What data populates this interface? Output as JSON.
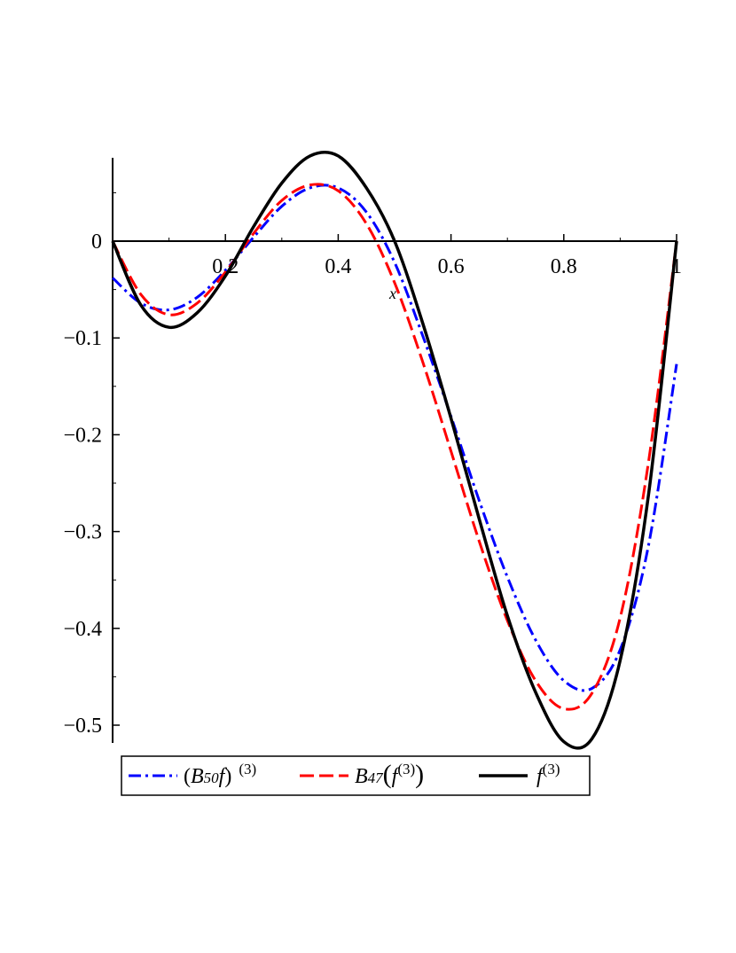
{
  "chart_data": {
    "type": "line",
    "xlabel": "x",
    "ylabel": "",
    "xlim": [
      0,
      1
    ],
    "ylim": [
      -0.52,
      0.09
    ],
    "x_ticks": [
      {
        "value": 0.2,
        "label": "0.2"
      },
      {
        "value": 0.4,
        "label": "0.4"
      },
      {
        "value": 0.6,
        "label": "0.6"
      },
      {
        "value": 0.8,
        "label": "0.8"
      },
      {
        "value": 1.0,
        "label": "1"
      }
    ],
    "y_ticks": [
      {
        "value": 0,
        "label": "0"
      },
      {
        "value": -0.1,
        "label": "−0.1"
      },
      {
        "value": -0.2,
        "label": "−0.2"
      },
      {
        "value": -0.3,
        "label": "−0.3"
      },
      {
        "value": -0.4,
        "label": "−0.4"
      },
      {
        "value": -0.5,
        "label": "−0.5"
      }
    ],
    "grid": false,
    "legend_position": "bottom",
    "x": [
      0,
      0.05,
      0.1,
      0.15,
      0.2,
      0.25,
      0.3,
      0.35,
      0.4,
      0.45,
      0.5,
      0.55,
      0.6,
      0.65,
      0.7,
      0.75,
      0.8,
      0.85,
      0.9,
      0.95,
      1.0
    ],
    "series": [
      {
        "name": "(B50f)^(3)",
        "color": "#0000ff",
        "dash": "dashdot",
        "values": [
          -0.038,
          -0.064,
          -0.071,
          -0.058,
          -0.03,
          0.004,
          0.036,
          0.055,
          0.055,
          0.03,
          -0.022,
          -0.098,
          -0.181,
          -0.268,
          -0.347,
          -0.412,
          -0.454,
          -0.462,
          -0.422,
          -0.315,
          -0.127
        ]
      },
      {
        "name": "B47(f^(3))",
        "color": "#ff0000",
        "dash": "dash",
        "values": [
          0,
          -0.055,
          -0.076,
          -0.064,
          -0.032,
          0.008,
          0.042,
          0.058,
          0.052,
          0.018,
          -0.043,
          -0.125,
          -0.217,
          -0.31,
          -0.392,
          -0.454,
          -0.483,
          -0.467,
          -0.389,
          -0.229,
          0
        ]
      },
      {
        "name": "f^(3)",
        "color": "#000000",
        "dash": "solid",
        "values": [
          0,
          -0.066,
          -0.089,
          -0.074,
          -0.036,
          0.015,
          0.06,
          0.088,
          0.088,
          0.055,
          0,
          -0.085,
          -0.183,
          -0.287,
          -0.387,
          -0.466,
          -0.517,
          -0.514,
          -0.433,
          -0.263,
          0
        ]
      }
    ],
    "legend": {
      "s1": {
        "paren_open": "(",
        "B": "B",
        "sub": "50",
        "f": "f",
        "paren_close": ")",
        "sup": "(3)"
      },
      "s2": {
        "B": "B",
        "sub": "47",
        "paren_open": "(",
        "f": "f",
        "sup": "(3)",
        "paren_close": ")"
      },
      "s3": {
        "f": "f",
        "sup": "(3)"
      }
    }
  }
}
